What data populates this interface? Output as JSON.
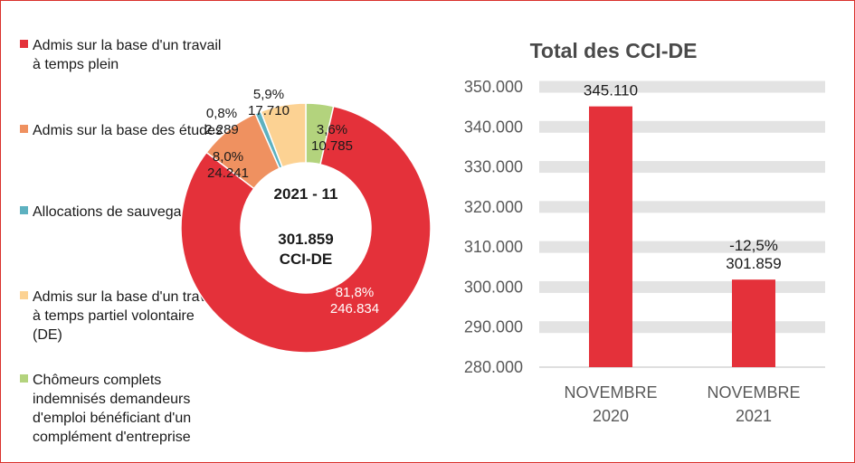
{
  "chart_data": [
    {
      "type": "pie",
      "donut": true,
      "center_title": "2021 - 11",
      "center_value": "301.859",
      "center_unit": "CCI-DE",
      "legend_position": "left",
      "slices": [
        {
          "name": "Admis sur la base d'un travail à temps plein",
          "percent_label": "81,8%",
          "value_label": "246.834",
          "value": 246834,
          "color": "#e4313a"
        },
        {
          "name": "Admis sur la base des études",
          "percent_label": "8,0%",
          "value_label": "24.241",
          "value": 24241,
          "color": "#ef9160"
        },
        {
          "name": "Allocations de sauvegarde",
          "percent_label": "0,8%",
          "value_label": "2.289",
          "value": 2289,
          "color": "#5db1c0"
        },
        {
          "name": "Admis sur la base d'un travail à temps partiel volontaire (DE)",
          "percent_label": "5,9%",
          "value_label": "17.710",
          "value": 17710,
          "color": "#fcd293"
        },
        {
          "name": "Chômeurs complets indemnisés demandeurs d'emploi bénéficiant d'un complément d'entreprise",
          "percent_label": "3,6%",
          "value_label": "10.785",
          "value": 10785,
          "color": "#b3d37d"
        }
      ]
    },
    {
      "type": "bar",
      "title": "Total des CCI-DE",
      "categories": [
        "NOVEMBRE 2020",
        "NOVEMBRE 2021"
      ],
      "values": [
        345110,
        301859
      ],
      "value_labels": [
        "345.110",
        "301.859"
      ],
      "annotations": [
        "",
        "-12,5%"
      ],
      "ylim": [
        280000,
        350000
      ],
      "yticks": [
        280000,
        290000,
        300000,
        310000,
        320000,
        330000,
        340000,
        350000
      ],
      "ytick_labels": [
        "280.000",
        "290.000",
        "300.000",
        "310.000",
        "320.000",
        "330.000",
        "340.000",
        "350.000"
      ],
      "bar_color": "#e4313a",
      "grid_band_color": "#e3e3e3"
    }
  ]
}
